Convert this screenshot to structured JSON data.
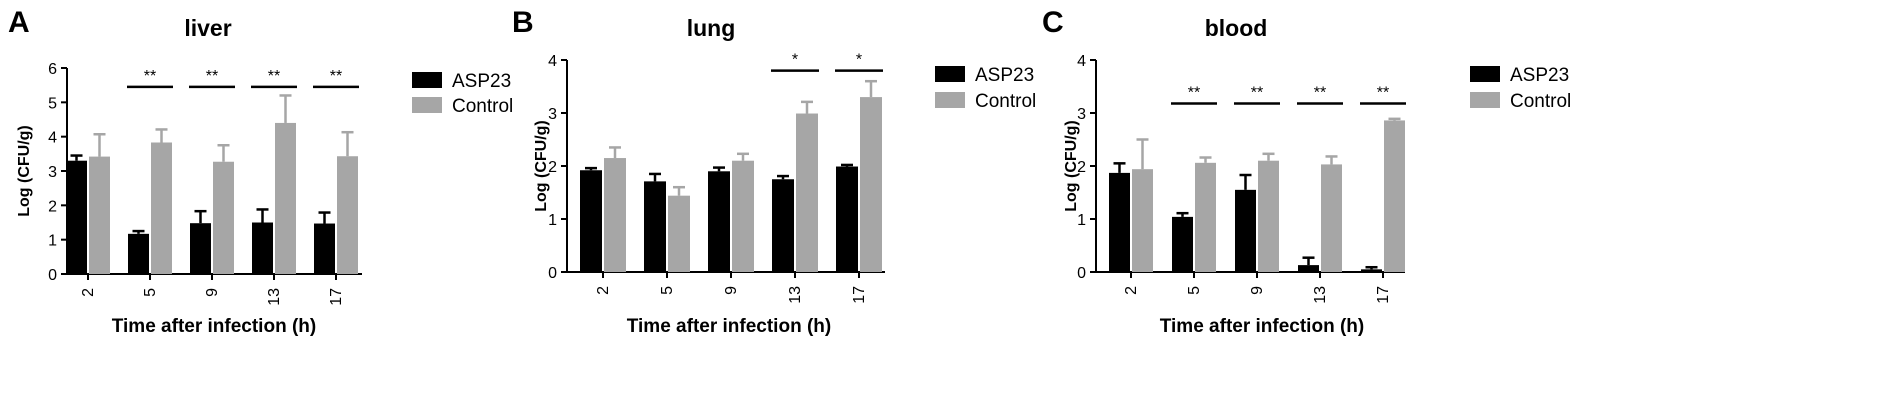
{
  "colors": {
    "asp23": "#000000",
    "control": "#a6a6a6",
    "axis": "#000000"
  },
  "chart_data": [
    {
      "type": "bar",
      "panel_letter": "A",
      "title": "liver",
      "xlabel": "Time after infection (h)",
      "ylabel": "Log (CFU/g)",
      "ylim": [
        0,
        6
      ],
      "yticks": [
        "0",
        "1",
        "2",
        "3",
        "4",
        "5",
        "6"
      ],
      "categories": [
        "2",
        "5",
        "9",
        "13",
        "17"
      ],
      "legend_position": "right",
      "series": [
        {
          "name": "ASP23",
          "values": [
            3.3,
            1.17,
            1.48,
            1.5,
            1.47
          ],
          "errors": [
            0.15,
            0.08,
            0.35,
            0.38,
            0.32
          ]
        },
        {
          "name": "Control",
          "values": [
            3.42,
            3.83,
            3.27,
            4.4,
            3.43
          ],
          "errors": [
            0.65,
            0.38,
            0.48,
            0.8,
            0.7
          ]
        }
      ],
      "significance": [
        {
          "category": "5",
          "label": "**",
          "level": 5.45
        },
        {
          "category": "9",
          "label": "**",
          "level": 5.45
        },
        {
          "category": "13",
          "label": "**",
          "level": 5.45
        },
        {
          "category": "17",
          "label": "**",
          "level": 5.45
        }
      ]
    },
    {
      "type": "bar",
      "panel_letter": "B",
      "title": "lung",
      "xlabel": "Time after infection (h)",
      "ylabel": "Log (CFU/g)",
      "ylim": [
        0,
        4
      ],
      "yticks": [
        "0",
        "1",
        "2",
        "3",
        "4"
      ],
      "categories": [
        "2",
        "5",
        "9",
        "13",
        "17"
      ],
      "legend_position": "right",
      "series": [
        {
          "name": "ASP23",
          "values": [
            1.92,
            1.71,
            1.9,
            1.75,
            1.99
          ],
          "errors": [
            0.04,
            0.14,
            0.07,
            0.06,
            0.03
          ]
        },
        {
          "name": "Control",
          "values": [
            2.15,
            1.44,
            2.1,
            2.99,
            3.3
          ],
          "errors": [
            0.2,
            0.16,
            0.13,
            0.22,
            0.3
          ]
        }
      ],
      "significance": [
        {
          "category": "13",
          "label": "*",
          "level": 3.8
        },
        {
          "category": "17",
          "label": "*",
          "level": 3.8
        }
      ]
    },
    {
      "type": "bar",
      "panel_letter": "C",
      "title": "blood",
      "xlabel": "Time after infection (h)",
      "ylabel": "Log (CFU/g)",
      "ylim": [
        0,
        4
      ],
      "yticks": [
        "0",
        "1",
        "2",
        "3",
        "4"
      ],
      "categories": [
        "2",
        "5",
        "9",
        "13",
        "17"
      ],
      "legend_position": "right",
      "series": [
        {
          "name": "ASP23",
          "values": [
            1.87,
            1.04,
            1.55,
            0.13,
            0.05
          ],
          "errors": [
            0.18,
            0.07,
            0.28,
            0.14,
            0.04
          ]
        },
        {
          "name": "Control",
          "values": [
            1.94,
            2.06,
            2.1,
            2.03,
            2.86
          ],
          "errors": [
            0.56,
            0.1,
            0.13,
            0.15,
            0.03
          ]
        }
      ],
      "significance": [
        {
          "category": "5",
          "label": "**",
          "level": 3.18
        },
        {
          "category": "9",
          "label": "**",
          "level": 3.18
        },
        {
          "category": "13",
          "label": "**",
          "level": 3.18
        },
        {
          "category": "17",
          "label": "**",
          "level": 3.18
        }
      ]
    }
  ]
}
